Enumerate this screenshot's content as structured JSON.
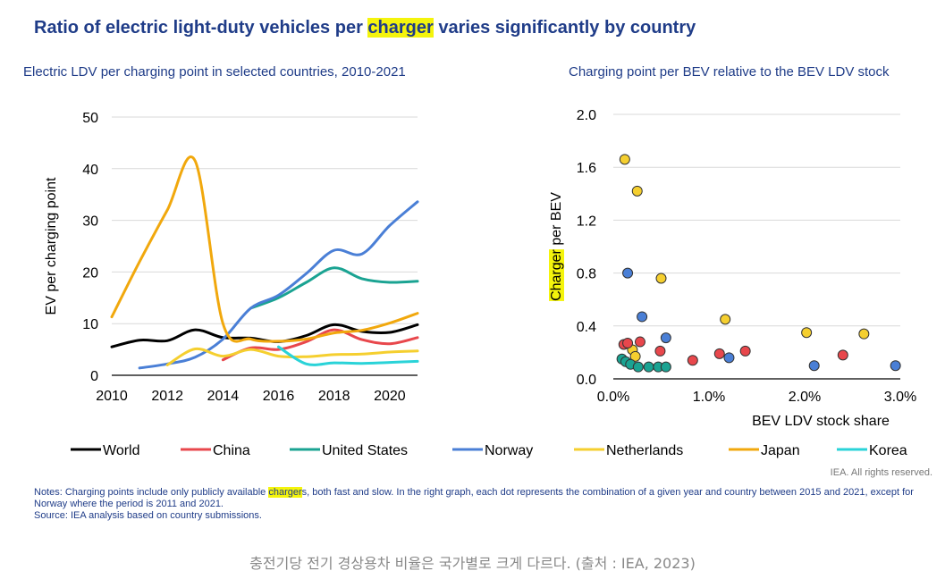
{
  "page": {
    "title_pre": "Ratio of electric light-duty vehicles per ",
    "title_highlight": "charger",
    "title_post": " varies significantly by country",
    "rights": "IEA. All rights reserved.",
    "notes_pre": "Notes: Charging points include only publicly available ",
    "notes_highlight": "charger",
    "notes_post": "s, both fast and slow. In the right graph, each dot represents the combination of a given year and country between 2015 and 2021, except for Norway where the period is 2011 and 2021.",
    "source": "Source: IEA analysis based on country submissions.",
    "caption": "충전기당 전기 경상용차 비율은 국가별로 크게 다르다. (출처 : IEA, 2023)"
  },
  "legend": [
    {
      "name": "World",
      "color": "#000000"
    },
    {
      "name": "China",
      "color": "#e8474c"
    },
    {
      "name": "United States",
      "color": "#1aa392"
    },
    {
      "name": "Norway",
      "color": "#4a7fd6"
    },
    {
      "name": "Netherlands",
      "color": "#f5cf2f"
    },
    {
      "name": "Japan",
      "color": "#f1a80d"
    },
    {
      "name": "Korea",
      "color": "#2ad3d8"
    }
  ],
  "chart_data": [
    {
      "type": "line",
      "title": "Electric LDV per charging point in selected countries, 2010-2021",
      "xlabel": "",
      "ylabel": "EV per charging point",
      "xlim": [
        2010,
        2021
      ],
      "ylim": [
        0,
        50
      ],
      "xticks": [
        2010,
        2012,
        2014,
        2016,
        2018,
        2020
      ],
      "yticks": [
        0,
        10,
        20,
        30,
        40,
        50
      ],
      "series": [
        {
          "name": "World",
          "color": "#000000",
          "points": [
            [
              2010,
              5.5
            ],
            [
              2011,
              6.8
            ],
            [
              2012,
              6.7
            ],
            [
              2013,
              8.8
            ],
            [
              2014,
              7.3
            ],
            [
              2015,
              7.2
            ],
            [
              2016,
              6.5
            ],
            [
              2017,
              7.7
            ],
            [
              2018,
              9.8
            ],
            [
              2019,
              8.5
            ],
            [
              2020,
              8.3
            ],
            [
              2021,
              9.8
            ]
          ]
        },
        {
          "name": "China",
          "color": "#e8474c",
          "points": [
            [
              2014,
              3.0
            ],
            [
              2015,
              5.3
            ],
            [
              2016,
              5.0
            ],
            [
              2017,
              6.5
            ],
            [
              2018,
              8.8
            ],
            [
              2019,
              6.9
            ],
            [
              2020,
              6.1
            ],
            [
              2021,
              7.3
            ]
          ]
        },
        {
          "name": "United States",
          "color": "#1aa392",
          "points": [
            [
              2015,
              13.0
            ],
            [
              2016,
              15.0
            ],
            [
              2017,
              18.0
            ],
            [
              2018,
              20.8
            ],
            [
              2019,
              18.7
            ],
            [
              2020,
              18.0
            ],
            [
              2021,
              18.2
            ]
          ]
        },
        {
          "name": "Norway",
          "color": "#4a7fd6",
          "points": [
            [
              2011,
              1.4
            ],
            [
              2012,
              2.2
            ],
            [
              2013,
              3.5
            ],
            [
              2014,
              7.0
            ],
            [
              2015,
              13.0
            ],
            [
              2016,
              15.5
            ],
            [
              2017,
              19.7
            ],
            [
              2018,
              24.2
            ],
            [
              2019,
              23.5
            ],
            [
              2020,
              29.0
            ],
            [
              2021,
              33.6
            ]
          ]
        },
        {
          "name": "Netherlands",
          "color": "#f5cf2f",
          "points": [
            [
              2012,
              2.0
            ],
            [
              2013,
              5.1
            ],
            [
              2014,
              3.7
            ],
            [
              2015,
              5.0
            ],
            [
              2016,
              3.7
            ],
            [
              2017,
              3.6
            ],
            [
              2018,
              4.0
            ],
            [
              2019,
              4.1
            ],
            [
              2020,
              4.5
            ],
            [
              2021,
              4.7
            ]
          ]
        },
        {
          "name": "Japan",
          "color": "#f1a80d",
          "points": [
            [
              2010,
              11.3
            ],
            [
              2011,
              22.0
            ],
            [
              2012,
              32.0
            ],
            [
              2013,
              41.5
            ],
            [
              2014,
              10.0
            ],
            [
              2015,
              7.0
            ],
            [
              2016,
              6.6
            ],
            [
              2017,
              7.0
            ],
            [
              2018,
              8.2
            ],
            [
              2019,
              8.7
            ],
            [
              2020,
              10.1
            ],
            [
              2021,
              12.0
            ]
          ]
        },
        {
          "name": "Korea",
          "color": "#2ad3d8",
          "points": [
            [
              2016,
              5.5
            ],
            [
              2017,
              2.2
            ],
            [
              2018,
              2.4
            ],
            [
              2019,
              2.3
            ],
            [
              2020,
              2.5
            ],
            [
              2021,
              2.7
            ]
          ]
        }
      ]
    },
    {
      "type": "scatter",
      "title": "Charging point per BEV relative to the BEV LDV stock",
      "xlabel": "BEV LDV stock share",
      "ylabel_pre": "",
      "ylabel_highlight": "Charger",
      "ylabel_post": " per BEV",
      "xlim": [
        0,
        0.03
      ],
      "ylim": [
        0,
        2.0
      ],
      "xticks": [
        {
          "v": 0,
          "label": "0.0%"
        },
        {
          "v": 0.01,
          "label": "1.0%"
        },
        {
          "v": 0.02,
          "label": "2.0%"
        },
        {
          "v": 0.03,
          "label": "3.0%"
        }
      ],
      "yticks": [
        {
          "v": 0,
          "label": "0.0"
        },
        {
          "v": 0.4,
          "label": "0.4"
        },
        {
          "v": 0.8,
          "label": "0.8"
        },
        {
          "v": 1.2,
          "label": "1.2"
        },
        {
          "v": 1.6,
          "label": "1.6"
        },
        {
          "v": 2.0,
          "label": "2.0"
        }
      ],
      "points": [
        {
          "x": 0.0012,
          "y": 1.66,
          "color": "#f5cf2f"
        },
        {
          "x": 0.0025,
          "y": 1.42,
          "color": "#f5cf2f"
        },
        {
          "x": 0.005,
          "y": 0.76,
          "color": "#f5cf2f"
        },
        {
          "x": 0.0117,
          "y": 0.45,
          "color": "#f5cf2f"
        },
        {
          "x": 0.0202,
          "y": 0.35,
          "color": "#f5cf2f"
        },
        {
          "x": 0.0262,
          "y": 0.34,
          "color": "#f5cf2f"
        },
        {
          "x": 0.002,
          "y": 0.22,
          "color": "#f5cf2f"
        },
        {
          "x": 0.0023,
          "y": 0.17,
          "color": "#f5cf2f"
        },
        {
          "x": 0.0015,
          "y": 0.8,
          "color": "#4a7fd6"
        },
        {
          "x": 0.003,
          "y": 0.47,
          "color": "#4a7fd6"
        },
        {
          "x": 0.0055,
          "y": 0.31,
          "color": "#4a7fd6"
        },
        {
          "x": 0.0121,
          "y": 0.16,
          "color": "#4a7fd6"
        },
        {
          "x": 0.021,
          "y": 0.1,
          "color": "#4a7fd6"
        },
        {
          "x": 0.0295,
          "y": 0.1,
          "color": "#4a7fd6"
        },
        {
          "x": 0.0011,
          "y": 0.26,
          "color": "#e8474c"
        },
        {
          "x": 0.0015,
          "y": 0.27,
          "color": "#e8474c"
        },
        {
          "x": 0.0028,
          "y": 0.28,
          "color": "#e8474c"
        },
        {
          "x": 0.0049,
          "y": 0.21,
          "color": "#e8474c"
        },
        {
          "x": 0.0083,
          "y": 0.14,
          "color": "#e8474c"
        },
        {
          "x": 0.0111,
          "y": 0.19,
          "color": "#e8474c"
        },
        {
          "x": 0.0138,
          "y": 0.21,
          "color": "#e8474c"
        },
        {
          "x": 0.024,
          "y": 0.18,
          "color": "#e8474c"
        },
        {
          "x": 0.0009,
          "y": 0.15,
          "color": "#1aa392"
        },
        {
          "x": 0.0013,
          "y": 0.13,
          "color": "#1aa392"
        },
        {
          "x": 0.0018,
          "y": 0.11,
          "color": "#1aa392"
        },
        {
          "x": 0.0026,
          "y": 0.09,
          "color": "#1aa392"
        },
        {
          "x": 0.0037,
          "y": 0.09,
          "color": "#1aa392"
        },
        {
          "x": 0.0047,
          "y": 0.09,
          "color": "#1aa392"
        },
        {
          "x": 0.0055,
          "y": 0.09,
          "color": "#1aa392"
        }
      ]
    }
  ]
}
